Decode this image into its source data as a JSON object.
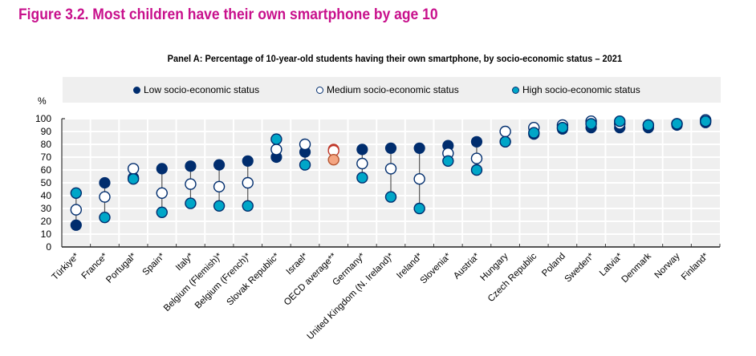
{
  "figure_title": "Figure 3.2. Most children have their own smartphone by age 10",
  "chart_data": {
    "type": "scatter",
    "subtype": "dot-range",
    "title": "Panel A: Percentage of 10-year-old students having their own smartphone, by socio-economic status – 2021",
    "ylabel": "%",
    "xlabel": "",
    "ylim": [
      0,
      100
    ],
    "yticks": [
      0,
      10,
      20,
      30,
      40,
      50,
      60,
      70,
      80,
      90,
      100
    ],
    "grid": true,
    "legend_position": "top",
    "categories": [
      "Türkiye*",
      "France*",
      "Portugal*",
      "Spain*",
      "Italy*",
      "Belgium (Flemish)*",
      "Belgium (French)*",
      "Slovak Republic*",
      "Israel*",
      "OECD average**",
      "Germany*",
      "United Kingdom (N. Ireland)*",
      "Ireland*",
      "Slovenia*",
      "Austria*",
      "Hungary",
      "Czech Republic",
      "Poland",
      "Sweden*",
      "Latvia*",
      "Denmark",
      "Norway",
      "Finland*"
    ],
    "highlight_category": "OECD average**",
    "series": [
      {
        "name": "Low socio-economic status",
        "marker": "filled-dark",
        "color": "#002d6e",
        "values": [
          17,
          50,
          54,
          61,
          63,
          64,
          67,
          70,
          74,
          76,
          76,
          77,
          77,
          79,
          82,
          82,
          88,
          92,
          93,
          93,
          93,
          95,
          97
        ]
      },
      {
        "name": "Medium socio-economic status",
        "marker": "hollow",
        "color": "#ffffff",
        "values": [
          29,
          39,
          61,
          42,
          49,
          47,
          50,
          76,
          80,
          75,
          65,
          61,
          53,
          73,
          69,
          90,
          93,
          95,
          98,
          96,
          95,
          96,
          99
        ]
      },
      {
        "name": "High socio-economic status",
        "marker": "filled-teal",
        "color": "#00a6c8",
        "values": [
          42,
          23,
          53,
          27,
          34,
          32,
          32,
          84,
          64,
          68,
          54,
          39,
          30,
          67,
          60,
          82,
          89,
          93,
          96,
          98,
          95,
          96,
          98
        ]
      }
    ],
    "highlight_colors": {
      "low": "#c0392b",
      "medium": "#ffffff",
      "high": "#f4a582"
    }
  },
  "colors": {
    "title": "#c8108c",
    "low": "#002d6e",
    "high": "#00a6c8",
    "plot_bg": "#efefef",
    "grid": "#ffffff"
  }
}
